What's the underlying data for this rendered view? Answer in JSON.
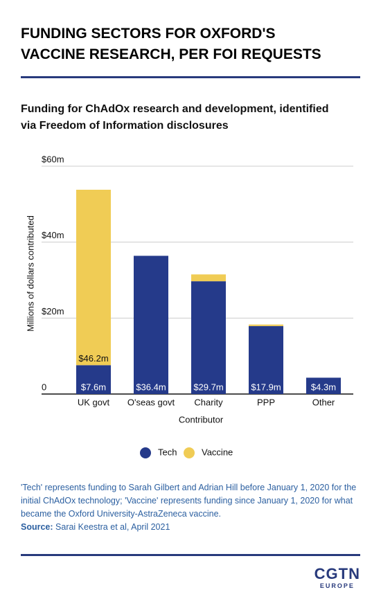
{
  "chart_data": {
    "type": "stacked_bar",
    "title": "FUNDING SECTORS FOR OXFORD'S VACCINE RESEARCH, PER FOI REQUESTS",
    "subtitle": "Funding for ChAdOx research and development, identified via Freedom of Information disclosures",
    "y_label": "Millions of dollars contributed",
    "x_label": "Contributor",
    "categories": [
      "UK govt",
      "O'seas govt",
      "Charity",
      "PPP",
      "Other"
    ],
    "series": [
      {
        "name": "Tech",
        "color": "#253a8a",
        "values": [
          7.6,
          36.4,
          29.7,
          17.9,
          4.3
        ],
        "value_labels": [
          "$7.6m",
          "$36.4m",
          "$29.7m",
          "$17.9m",
          "$4.3m"
        ]
      },
      {
        "name": "Vaccine",
        "color": "#f0cc55",
        "values": [
          46.2,
          0,
          1.8,
          0.4,
          0
        ],
        "value_labels": [
          "$46.2m",
          null,
          null,
          null,
          null
        ]
      }
    ],
    "ylim": [
      0,
      60
    ],
    "yticks": [
      0,
      {
        "value": 20,
        "label": "$20m"
      },
      {
        "value": 40,
        "label": "$40m"
      },
      {
        "value": 60,
        "label": "$60m"
      }
    ],
    "grid": true
  },
  "footnote": "'Tech' represents funding to Sarah Gilbert and Adrian Hill before January 1, 2020 for the initial ChAdOx technology; 'Vaccine' represents funding since January 1, 2020 for what became the Oxford University-AstraZeneca vaccine.",
  "source": {
    "label": "Source:",
    "text": "Sarai Keestra et al, April 2021"
  },
  "brand": {
    "name": "CGTN",
    "region": "EUROPE"
  }
}
